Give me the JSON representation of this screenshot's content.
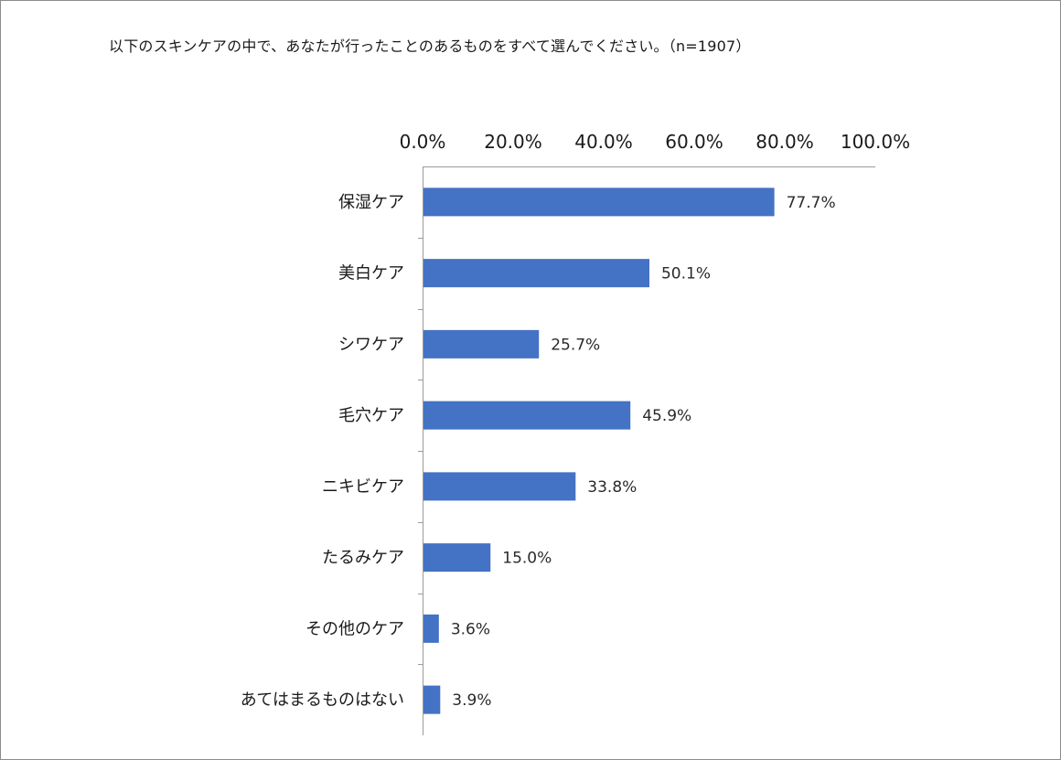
{
  "chart_data": {
    "type": "bar",
    "orientation": "horizontal",
    "title": "以下のスキンケアの中で、あなたが行ったことのあるものをすべて選んでください。（n=1907）",
    "categories": [
      "保湿ケア",
      "美白ケア",
      "シワケア",
      "毛穴ケア",
      "ニキビケア",
      "たるみケア",
      "その他のケア",
      "あてはまるものはない"
    ],
    "values": [
      77.7,
      50.1,
      25.7,
      45.9,
      33.8,
      15.0,
      3.6,
      3.9
    ],
    "data_labels": [
      "77.7%",
      "50.1%",
      "25.7%",
      "45.9%",
      "33.8%",
      "15.0%",
      "3.6%",
      "3.9%"
    ],
    "ticks": [
      0,
      20,
      40,
      60,
      80,
      100
    ],
    "tick_labels": [
      "0.0%",
      "20.0%",
      "40.0%",
      "60.0%",
      "80.0%",
      "100.0%"
    ],
    "xlim": [
      0,
      100
    ],
    "axis_position": "top",
    "grid": false,
    "legend": "none",
    "bar_color": "#4472C4"
  }
}
